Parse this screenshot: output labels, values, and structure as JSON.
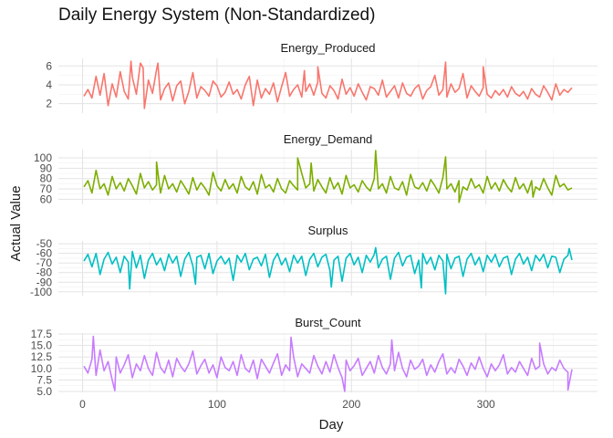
{
  "title": "Daily Energy System (Non-Standardized)",
  "chart_data": {
    "type": "line",
    "title": "Daily Energy System (Non-Standardized)",
    "xlabel": "Day",
    "ylabel": "Actual Value",
    "xlim": [
      0,
      365
    ],
    "x_ticks": [
      0,
      100,
      200,
      300
    ],
    "grid": true,
    "legend": "none",
    "facets": [
      {
        "name": "Energy_Produced",
        "color": "#F8766D",
        "ylim": [
          1,
          6.8
        ],
        "y_ticks": [
          2,
          4,
          6
        ],
        "y_tick_labels": [
          "2",
          "4",
          "6"
        ],
        "x": [
          1,
          4,
          7,
          10,
          13,
          16,
          19,
          22,
          25,
          28,
          31,
          34,
          37,
          40,
          43,
          46,
          49,
          52,
          55,
          58,
          61,
          64,
          67,
          70,
          73,
          76,
          79,
          82,
          85,
          88,
          91,
          94,
          97,
          100,
          103,
          106,
          109,
          112,
          115,
          118,
          121,
          124,
          127,
          130,
          133,
          136,
          139,
          142,
          145,
          148,
          151,
          154,
          157,
          160,
          163,
          166,
          169,
          172,
          175,
          178,
          181,
          184,
          187,
          190,
          193,
          196,
          199,
          202,
          205,
          208,
          211,
          214,
          217,
          220,
          223,
          226,
          229,
          232,
          235,
          238,
          241,
          244,
          247,
          250,
          253,
          256,
          259,
          262,
          265,
          268,
          271,
          274,
          277,
          280,
          283,
          286,
          289,
          292,
          295,
          298,
          301,
          304,
          307,
          310,
          313,
          316,
          319,
          322,
          325,
          328,
          331,
          334,
          337,
          340,
          343,
          346,
          349,
          352,
          355,
          358,
          361,
          364
        ],
        "values": [
          2.8,
          3.5,
          2.6,
          4.9,
          2.9,
          5.2,
          1.8,
          4.1,
          2.7,
          5.4,
          3.3,
          2.5,
          4.8,
          3.0,
          6.3,
          1.5,
          4.5,
          3.1,
          5.6,
          2.4,
          3.6,
          4.2,
          2.3,
          3.9,
          4.4,
          2.0,
          3.3,
          5.3,
          2.6,
          3.8,
          3.4,
          2.8,
          4.4,
          3.9,
          2.7,
          3.2,
          4.3,
          3.0,
          3.5,
          2.5,
          4.0,
          4.9,
          1.8,
          4.5,
          2.6,
          3.6,
          3.0,
          4.2,
          2.2,
          3.8,
          5.3,
          2.8,
          3.5,
          4.0,
          2.7,
          3.3,
          4.1,
          2.9,
          4.3,
          3.1,
          2.6,
          3.9,
          3.4,
          2.5,
          4.6,
          3.0,
          3.7,
          2.8,
          4.1,
          3.2,
          2.4,
          3.8,
          3.6,
          2.9,
          4.5,
          2.7,
          3.3,
          3.9,
          2.6,
          4.2,
          3.1,
          2.8,
          3.6,
          4.0,
          2.5,
          3.4,
          3.8,
          5.0,
          2.9,
          3.5,
          2.7,
          4.1,
          3.2,
          3.6,
          5.2,
          2.6,
          3.9,
          3.3,
          2.8,
          3.7,
          3.0,
          2.6,
          3.4,
          2.9,
          3.5,
          2.7,
          3.8,
          3.1,
          2.8,
          3.3,
          2.5,
          3.6,
          3.0,
          2.7,
          3.9,
          3.2,
          2.4,
          4.1,
          2.9,
          3.5,
          3.2,
          3.7
        ],
        "extremes": [
          [
            36,
            6.5
          ],
          [
            45,
            5.8
          ],
          [
            56,
            6.3
          ],
          [
            165,
            5.5
          ],
          [
            175,
            5.9
          ],
          [
            270,
            6.4
          ],
          [
            298,
            5.9
          ]
        ]
      },
      {
        "name": "Energy_Demand",
        "color": "#7CAE00",
        "ylim": [
          55,
          108
        ],
        "y_ticks": [
          60,
          70,
          80,
          90,
          100
        ],
        "y_tick_labels": [
          "60",
          "70",
          "80",
          "90",
          "100"
        ],
        "x": [
          1,
          4,
          7,
          10,
          13,
          16,
          19,
          22,
          25,
          28,
          31,
          34,
          37,
          40,
          43,
          46,
          49,
          52,
          55,
          58,
          61,
          64,
          67,
          70,
          73,
          76,
          79,
          82,
          85,
          88,
          91,
          94,
          97,
          100,
          103,
          106,
          109,
          112,
          115,
          118,
          121,
          124,
          127,
          130,
          133,
          136,
          139,
          142,
          145,
          148,
          151,
          154,
          157,
          160,
          163,
          166,
          169,
          172,
          175,
          178,
          181,
          184,
          187,
          190,
          193,
          196,
          199,
          202,
          205,
          208,
          211,
          214,
          217,
          220,
          223,
          226,
          229,
          232,
          235,
          238,
          241,
          244,
          247,
          250,
          253,
          256,
          259,
          262,
          265,
          268,
          271,
          274,
          277,
          280,
          283,
          286,
          289,
          292,
          295,
          298,
          301,
          304,
          307,
          310,
          313,
          316,
          319,
          322,
          325,
          328,
          331,
          334,
          337,
          340,
          343,
          346,
          349,
          352,
          355,
          358,
          361,
          364
        ],
        "values": [
          72,
          78,
          66,
          88,
          70,
          75,
          64,
          82,
          70,
          76,
          68,
          80,
          73,
          65,
          85,
          71,
          77,
          69,
          74,
          66,
          83,
          70,
          75,
          67,
          78,
          72,
          65,
          81,
          69,
          76,
          71,
          64,
          86,
          73,
          68,
          79,
          70,
          75,
          66,
          82,
          72,
          69,
          77,
          65,
          84,
          71,
          74,
          67,
          80,
          70,
          66,
          78,
          73,
          69,
          85,
          71,
          75,
          68,
          79,
          72,
          66,
          81,
          70,
          76,
          65,
          83,
          71,
          74,
          67,
          78,
          72,
          68,
          80,
          70,
          75,
          66,
          82,
          71,
          69,
          77,
          64,
          84,
          72,
          70,
          76,
          68,
          79,
          73,
          66,
          81,
          70,
          75,
          67,
          78,
          72,
          69,
          80,
          71,
          74,
          66,
          82,
          70,
          76,
          68,
          79,
          72,
          67,
          81,
          70,
          75,
          66,
          78,
          72,
          69,
          80,
          71,
          64,
          83,
          72,
          75,
          69,
          71
        ],
        "extremes": [
          [
            55,
            96
          ],
          [
            160,
            100
          ],
          [
            170,
            95
          ],
          [
            218,
            107
          ],
          [
            270,
            101
          ],
          [
            280,
            57
          ],
          [
            335,
            62
          ]
        ]
      },
      {
        "name": "Surplus",
        "color": "#00BFC4",
        "ylim": [
          -104,
          -47
        ],
        "y_ticks": [
          -100,
          -90,
          -80,
          -70,
          -60,
          -50
        ],
        "y_tick_labels": [
          "-100",
          "-90",
          "-80",
          "-70",
          "-60",
          "-50"
        ],
        "x": [
          1,
          4,
          7,
          10,
          13,
          16,
          19,
          22,
          25,
          28,
          31,
          34,
          37,
          40,
          43,
          46,
          49,
          52,
          55,
          58,
          61,
          64,
          67,
          70,
          73,
          76,
          79,
          82,
          85,
          88,
          91,
          94,
          97,
          100,
          103,
          106,
          109,
          112,
          115,
          118,
          121,
          124,
          127,
          130,
          133,
          136,
          139,
          142,
          145,
          148,
          151,
          154,
          157,
          160,
          163,
          166,
          169,
          172,
          175,
          178,
          181,
          184,
          187,
          190,
          193,
          196,
          199,
          202,
          205,
          208,
          211,
          214,
          217,
          220,
          223,
          226,
          229,
          232,
          235,
          238,
          241,
          244,
          247,
          250,
          253,
          256,
          259,
          262,
          265,
          268,
          271,
          274,
          277,
          280,
          283,
          286,
          289,
          292,
          295,
          298,
          301,
          304,
          307,
          310,
          313,
          316,
          319,
          322,
          325,
          328,
          331,
          334,
          337,
          340,
          343,
          346,
          349,
          352,
          355,
          358,
          361,
          364
        ],
        "values": [
          -68,
          -61,
          -74,
          -60,
          -82,
          -66,
          -59,
          -71,
          -64,
          -80,
          -63,
          -69,
          -58,
          -75,
          -62,
          -86,
          -67,
          -60,
          -72,
          -65,
          -78,
          -61,
          -70,
          -63,
          -84,
          -66,
          -59,
          -73,
          -64,
          -62,
          -76,
          -60,
          -81,
          -68,
          -63,
          -71,
          -65,
          -88,
          -62,
          -69,
          -60,
          -77,
          -66,
          -64,
          -73,
          -61,
          -85,
          -67,
          -60,
          -72,
          -65,
          -79,
          -62,
          -70,
          -63,
          -83,
          -66,
          -60,
          -74,
          -64,
          -61,
          -78,
          -67,
          -63,
          -89,
          -65,
          -60,
          -72,
          -64,
          -80,
          -62,
          -69,
          -61,
          -75,
          -66,
          -63,
          -87,
          -65,
          -59,
          -73,
          -64,
          -62,
          -81,
          -67,
          -60,
          -71,
          -64,
          -77,
          -62,
          -68,
          -61,
          -76,
          -65,
          -63,
          -84,
          -66,
          -60,
          -72,
          -64,
          -79,
          -62,
          -69,
          -61,
          -74,
          -65,
          -63,
          -82,
          -66,
          -60,
          -71,
          -64,
          -78,
          -62,
          -68,
          -61,
          -75,
          -63,
          -64,
          -80,
          -66,
          -62,
          -67
        ],
        "extremes": [
          [
            35,
            -97
          ],
          [
            84,
            -92
          ],
          [
            185,
            -95
          ],
          [
            218,
            -54
          ],
          [
            252,
            -96
          ],
          [
            270,
            -102
          ],
          [
            362,
            -55
          ]
        ]
      },
      {
        "name": "Burst_Count",
        "color": "#C77CFF",
        "ylim": [
          4.8,
          17.7
        ],
        "y_ticks": [
          5,
          7.5,
          10,
          12.5,
          15,
          17.5
        ],
        "y_tick_labels": [
          "5.0",
          "7.5",
          "10.0",
          "12.5",
          "15.0",
          "17.5"
        ],
        "x": [
          1,
          4,
          7,
          10,
          13,
          16,
          19,
          22,
          25,
          28,
          31,
          34,
          37,
          40,
          43,
          46,
          49,
          52,
          55,
          58,
          61,
          64,
          67,
          70,
          73,
          76,
          79,
          82,
          85,
          88,
          91,
          94,
          97,
          100,
          103,
          106,
          109,
          112,
          115,
          118,
          121,
          124,
          127,
          130,
          133,
          136,
          139,
          142,
          145,
          148,
          151,
          154,
          157,
          160,
          163,
          166,
          169,
          172,
          175,
          178,
          181,
          184,
          187,
          190,
          193,
          196,
          199,
          202,
          205,
          208,
          211,
          214,
          217,
          220,
          223,
          226,
          229,
          232,
          235,
          238,
          241,
          244,
          247,
          250,
          253,
          256,
          259,
          262,
          265,
          268,
          271,
          274,
          277,
          280,
          283,
          286,
          289,
          292,
          295,
          298,
          301,
          304,
          307,
          310,
          313,
          316,
          319,
          322,
          325,
          328,
          331,
          334,
          337,
          340,
          343,
          346,
          349,
          352,
          355,
          358,
          361,
          364
        ],
        "values": [
          10.5,
          9.0,
          12.0,
          8.5,
          14.0,
          9.5,
          11.5,
          7.5,
          12.5,
          9.0,
          10.8,
          13.0,
          8.0,
          11.0,
          9.5,
          12.8,
          10.0,
          8.5,
          13.5,
          10.2,
          9.0,
          11.8,
          8.2,
          12.2,
          10.5,
          9.3,
          11.0,
          13.8,
          8.8,
          10.6,
          12.0,
          9.0,
          10.8,
          8.0,
          12.5,
          10.2,
          9.5,
          11.5,
          8.5,
          13.0,
          10.0,
          9.2,
          11.8,
          7.8,
          12.0,
          10.5,
          9.0,
          11.2,
          13.2,
          8.5,
          10.8,
          9.5,
          12.5,
          8.2,
          11.0,
          10.0,
          9.0,
          12.8,
          10.5,
          8.8,
          11.5,
          9.2,
          13.0,
          10.2,
          8.0,
          11.8,
          9.5,
          10.6,
          12.2,
          8.5,
          10.0,
          11.5,
          9.0,
          12.8,
          10.2,
          8.8,
          11.0,
          9.5,
          13.5,
          10.0,
          8.2,
          11.8,
          9.8,
          10.5,
          12.0,
          8.5,
          10.8,
          9.2,
          11.5,
          13.2,
          8.8,
          10.2,
          9.0,
          12.0,
          10.5,
          8.5,
          11.2,
          9.8,
          12.5,
          10.0,
          8.2,
          11.0,
          9.5,
          10.8,
          13.0,
          8.8,
          10.2,
          9.2,
          11.5,
          10.0,
          8.5,
          12.2,
          9.8,
          10.5,
          11.0,
          8.8,
          10.2,
          9.5,
          11.8,
          10.0,
          9.2,
          9.8
        ],
        "extremes": [
          [
            8,
            17.0
          ],
          [
            24,
            5.2
          ],
          [
            155,
            16.8
          ],
          [
            195,
            5.0
          ],
          [
            230,
            16.2
          ],
          [
            340,
            15.5
          ],
          [
            361,
            5.3
          ]
        ]
      }
    ]
  }
}
